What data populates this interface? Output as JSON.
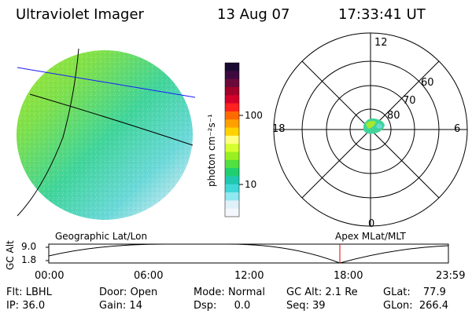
{
  "header": {
    "instrument": "Ultraviolet Imager",
    "date": "13 Aug 07",
    "time": "17:33:41 UT"
  },
  "colorbar": {
    "unit_label": "photon cm⁻²s⁻¹",
    "ticks": [
      "100",
      "10"
    ],
    "colors": [
      "#1a0a30",
      "#3d0a40",
      "#6b0a3a",
      "#a3002a",
      "#d4002a",
      "#ff2020",
      "#ff6a00",
      "#ffa000",
      "#ffd200",
      "#ffff80",
      "#d6ff30",
      "#98f020",
      "#50e040",
      "#20d070",
      "#20c8b0",
      "#40d8d8",
      "#90e8f0",
      "#e0f0f8",
      "#f4f8fc"
    ]
  },
  "polar_plot": {
    "mlt_labels": {
      "top": "12",
      "left": "18",
      "right": "6",
      "bottom": "0"
    },
    "lat_labels": [
      "60",
      "70",
      "80"
    ]
  },
  "labels": {
    "geographic": "Geographic Lat/Lon",
    "apex": "Apex MLat/MLT"
  },
  "altitude_plot": {
    "axis_label": "GC Alt",
    "y_ticks": [
      "9.0",
      "1.8"
    ],
    "x_ticks": [
      "00:00",
      "06:00",
      "12:00",
      "18:00",
      "23:59"
    ]
  },
  "info": {
    "flt_label": "Flt:",
    "flt_value": "LBHL",
    "ip_label": "IP:",
    "ip_value": "36.0",
    "door_label": "Door:",
    "door_value": "Open",
    "gain_label": "Gain:",
    "gain_value": "14",
    "mode_label": "Mode:",
    "mode_value": "Normal",
    "dsp_label": "Dsp:",
    "dsp_value": "0.0",
    "gcalt_label": "GC Alt:",
    "gcalt_value": "2.1 Re",
    "seq_label": "Seq:",
    "seq_value": "39",
    "glat_label": "GLat:",
    "glat_value": "77.9",
    "glon_label": "GLon:",
    "glon_value": "266.4"
  }
}
